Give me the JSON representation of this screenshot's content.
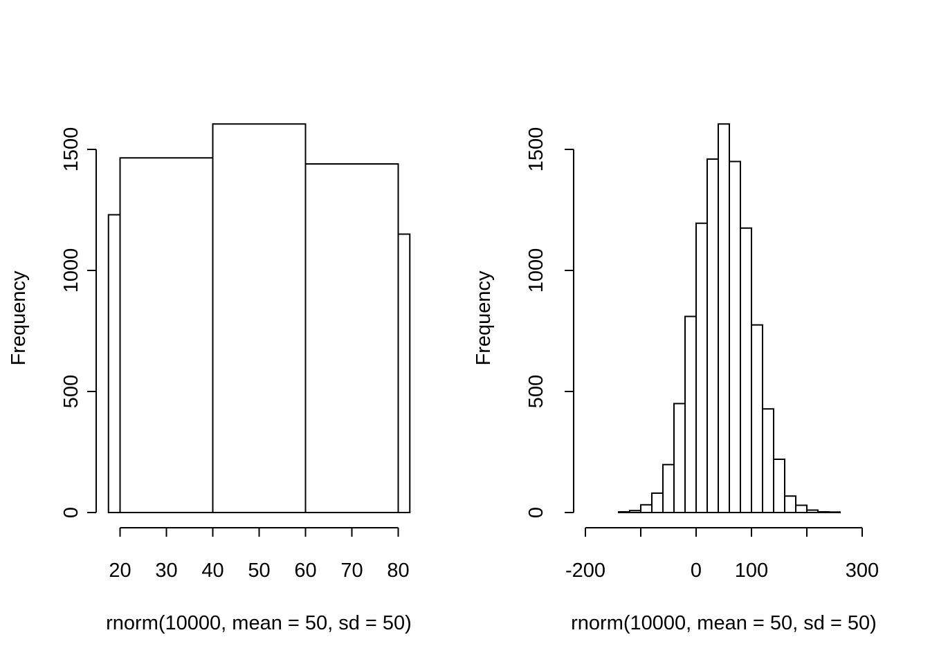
{
  "chart_data": [
    {
      "type": "bar",
      "title": "",
      "xlabel": "rnorm(10000, mean = 50, sd = 50)",
      "ylabel": "Frequency",
      "x_ticks": [
        20,
        30,
        40,
        50,
        60,
        70,
        80
      ],
      "x_tick_labels": [
        "20",
        "30",
        "40",
        "50",
        "60",
        "70",
        "80"
      ],
      "xlim": [
        20,
        80
      ],
      "y_ticks": [
        0,
        500,
        1000,
        1500
      ],
      "y_tick_labels": [
        "0",
        "500",
        "1000",
        "1500"
      ],
      "ylim": [
        0,
        1600
      ],
      "bins": [
        {
          "x0": 17.5,
          "x1": 20,
          "count": 1230
        },
        {
          "x0": 20,
          "x1": 40,
          "count": 1465
        },
        {
          "x0": 40,
          "x1": 60,
          "count": 1605
        },
        {
          "x0": 60,
          "x1": 80,
          "count": 1440
        },
        {
          "x0": 80,
          "x1": 82.5,
          "count": 1150
        }
      ],
      "grid": false
    },
    {
      "type": "bar",
      "title": "",
      "xlabel": "rnorm(10000, mean = 50, sd = 50)",
      "ylabel": "Frequency",
      "x_ticks": [
        -200,
        -100,
        0,
        100,
        200,
        300
      ],
      "x_tick_labels": [
        "-200",
        "",
        "0",
        "100",
        "",
        "300"
      ],
      "xlim": [
        -200,
        300
      ],
      "y_ticks": [
        0,
        500,
        1000,
        1500
      ],
      "y_tick_labels": [
        "0",
        "500",
        "1000",
        "1500"
      ],
      "ylim": [
        0,
        1600
      ],
      "bins": [
        {
          "x0": -140,
          "x1": -120,
          "count": 3
        },
        {
          "x0": -120,
          "x1": -100,
          "count": 8
        },
        {
          "x0": -100,
          "x1": -80,
          "count": 32
        },
        {
          "x0": -80,
          "x1": -60,
          "count": 80
        },
        {
          "x0": -60,
          "x1": -40,
          "count": 198
        },
        {
          "x0": -40,
          "x1": -20,
          "count": 450
        },
        {
          "x0": -20,
          "x1": 0,
          "count": 810
        },
        {
          "x0": 0,
          "x1": 20,
          "count": 1195
        },
        {
          "x0": 20,
          "x1": 40,
          "count": 1460
        },
        {
          "x0": 40,
          "x1": 60,
          "count": 1605
        },
        {
          "x0": 60,
          "x1": 80,
          "count": 1450
        },
        {
          "x0": 80,
          "x1": 100,
          "count": 1175
        },
        {
          "x0": 100,
          "x1": 120,
          "count": 775
        },
        {
          "x0": 120,
          "x1": 140,
          "count": 428
        },
        {
          "x0": 140,
          "x1": 160,
          "count": 220
        },
        {
          "x0": 160,
          "x1": 180,
          "count": 68
        },
        {
          "x0": 180,
          "x1": 200,
          "count": 30
        },
        {
          "x0": 200,
          "x1": 220,
          "count": 10
        },
        {
          "x0": 220,
          "x1": 240,
          "count": 3
        },
        {
          "x0": 240,
          "x1": 260,
          "count": 2
        }
      ],
      "grid": false
    }
  ]
}
